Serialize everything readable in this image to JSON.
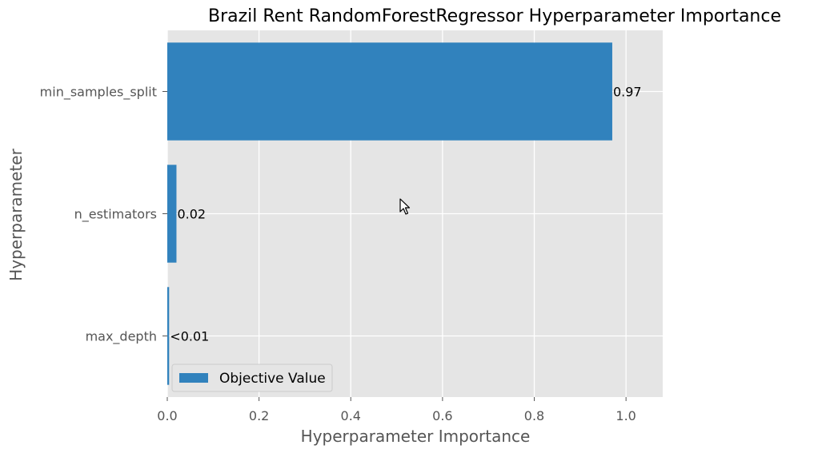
{
  "colors": {
    "bar": "#3182bd",
    "plot_background": "#e5e5e5",
    "grid": "#ffffff",
    "text": "#555555",
    "title": "#000000"
  },
  "chart_data": {
    "type": "bar",
    "orientation": "horizontal",
    "title": "Brazil Rent RandomForestRegressor Hyperparameter Importance",
    "xlabel": "Hyperparameter Importance",
    "ylabel": "Hyperparameter",
    "categories": [
      "min_samples_split",
      "n_estimators",
      "max_depth"
    ],
    "series": [
      {
        "name": "Objective Value",
        "values": [
          0.97,
          0.02,
          0.004
        ],
        "labels": [
          "0.97",
          "0.02",
          "<0.01"
        ]
      }
    ],
    "xlim": [
      0,
      1.08
    ],
    "xticks": [
      0.0,
      0.2,
      0.4,
      0.6,
      0.8,
      1.0
    ],
    "xtick_labels": [
      "0.0",
      "0.2",
      "0.4",
      "0.6",
      "0.8",
      "1.0"
    ],
    "grid": true,
    "legend_position": "lower-left"
  }
}
